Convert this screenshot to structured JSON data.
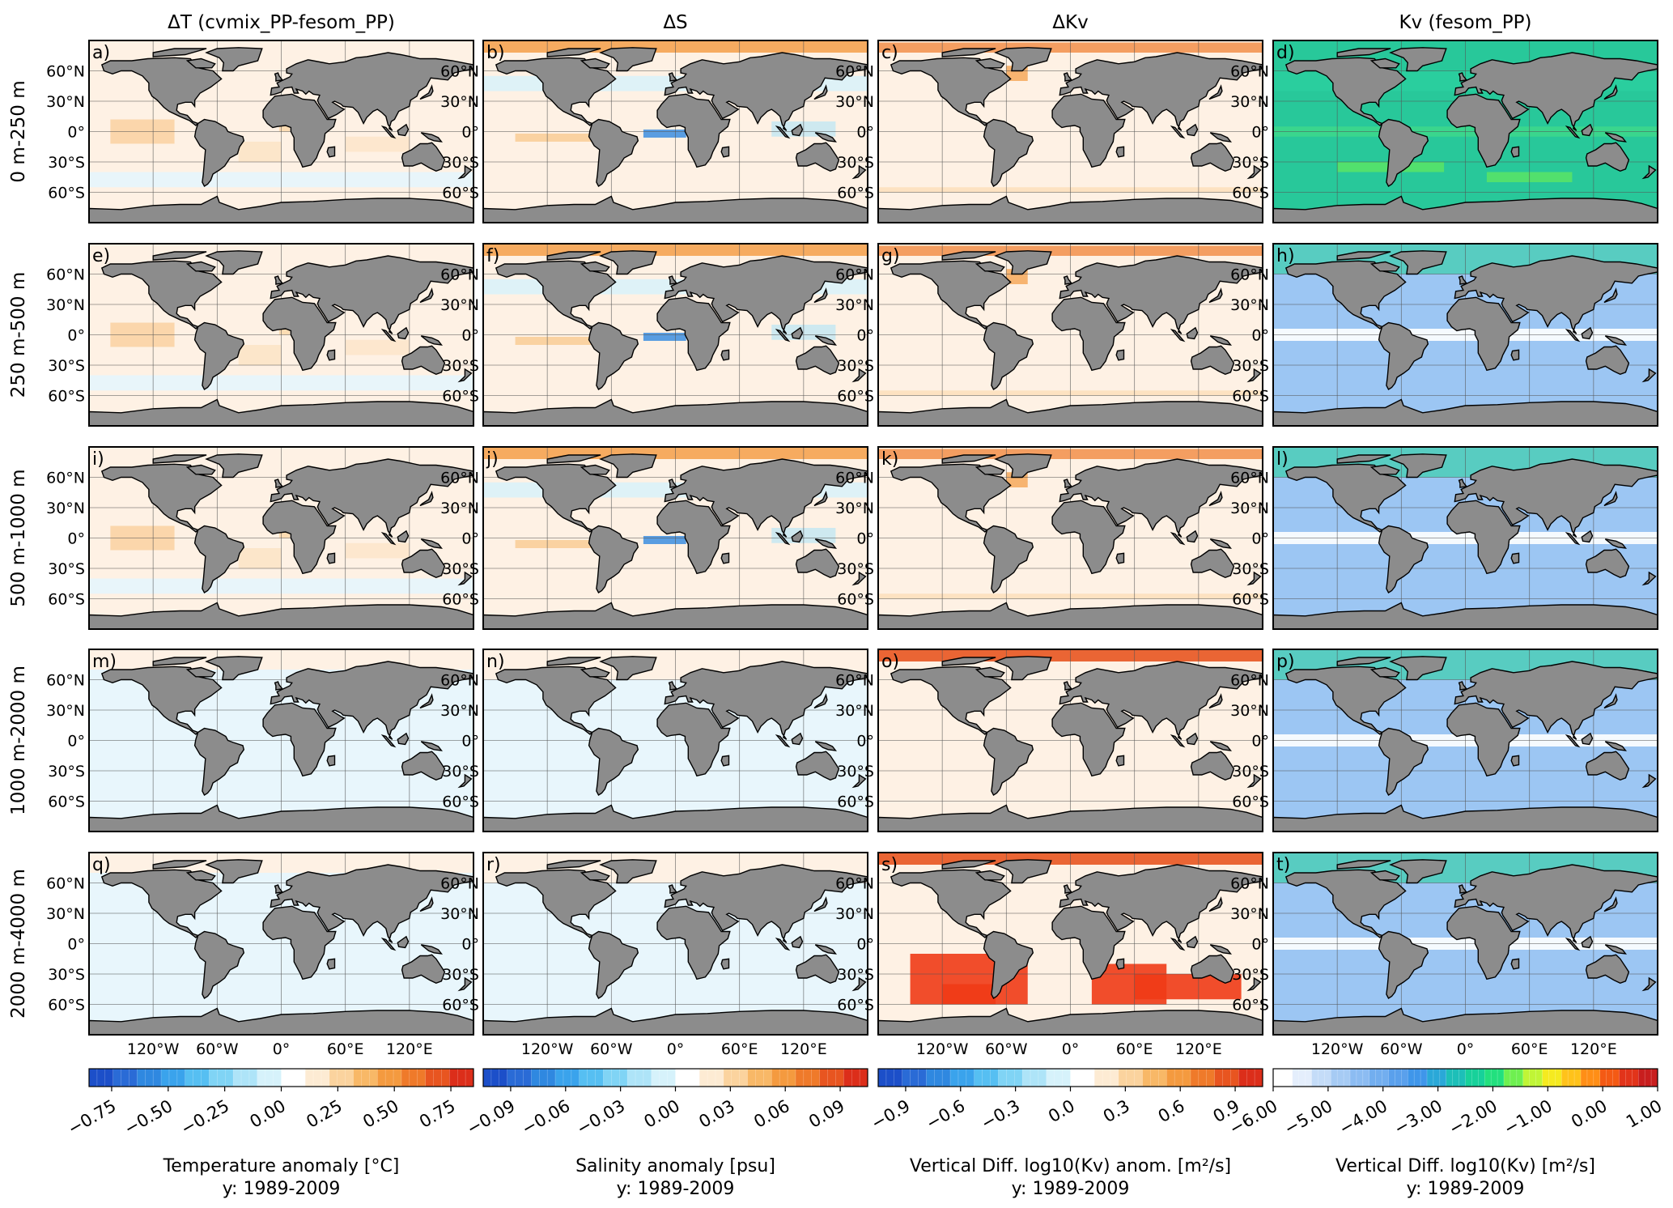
{
  "columns": [
    {
      "header": "ΔT (cvmix_PP-fesom_PP)",
      "theme": "temp",
      "labels": [
        "a)",
        "e)",
        "i)",
        "m)",
        "q)"
      ],
      "colorbar": {
        "colors": [
          "#1c4fc9",
          "#2a6bd6",
          "#2f88e0",
          "#3aa3ec",
          "#56bff2",
          "#80d4f5",
          "#aee4f8",
          "#d6f2fb",
          "#ffffff",
          "#fdebd3",
          "#fbd39e",
          "#f8b867",
          "#f49a3f",
          "#ef7a2a",
          "#e85520",
          "#dc2e1a"
        ],
        "ticks": [
          "−0.75",
          "−0.50",
          "−0.25",
          "0.00",
          "0.25",
          "0.50",
          "0.75"
        ],
        "tick_positions": [
          -0.75,
          -0.5,
          -0.25,
          0.0,
          0.25,
          0.5,
          0.75
        ],
        "range": [
          -0.85,
          0.85
        ],
        "label": "Temperature anomaly [°C]",
        "period": "y: 1989-2009"
      }
    },
    {
      "header": "ΔS",
      "theme": "sal",
      "labels": [
        "b)",
        "f)",
        "j)",
        "n)",
        "r)"
      ],
      "colorbar": {
        "colors": [
          "#1c4fc9",
          "#2a6bd6",
          "#2f88e0",
          "#3aa3ec",
          "#56bff2",
          "#80d4f5",
          "#aee4f8",
          "#d6f2fb",
          "#ffffff",
          "#fdebd3",
          "#fbd39e",
          "#f8b867",
          "#f49a3f",
          "#ef7a2a",
          "#e85520",
          "#dc2e1a"
        ],
        "ticks": [
          "−0.09",
          "−0.06",
          "−0.03",
          "0.00",
          "0.03",
          "0.06",
          "0.09"
        ],
        "tick_positions": [
          -0.09,
          -0.06,
          -0.03,
          0.0,
          0.03,
          0.06,
          0.09
        ],
        "range": [
          -0.105,
          0.105
        ],
        "label": "Salinity anomaly [psu]",
        "period": "y: 1989-2009"
      }
    },
    {
      "header": "ΔKv",
      "theme": "dkv",
      "labels": [
        "c)",
        "g)",
        "k)",
        "o)",
        "s)"
      ],
      "colorbar": {
        "colors": [
          "#1c4fc9",
          "#2a6bd6",
          "#2f88e0",
          "#3aa3ec",
          "#56bff2",
          "#80d4f5",
          "#aee4f8",
          "#d6f2fb",
          "#ffffff",
          "#fdebd3",
          "#fbd39e",
          "#f8b867",
          "#f49a3f",
          "#ef7a2a",
          "#e85520",
          "#dc2e1a"
        ],
        "ticks": [
          "−0.9",
          "−0.6",
          "−0.3",
          "0.0",
          "0.3",
          "0.6",
          "0.9"
        ],
        "tick_positions": [
          -0.9,
          -0.6,
          -0.3,
          0.0,
          0.3,
          0.6,
          0.9
        ],
        "range": [
          -1.05,
          1.05
        ],
        "label": "Vertical Diff. log10(Kv) anom. [m²/s]",
        "period": "y: 1989-2009"
      }
    },
    {
      "header": "Kv (fesom_PP)",
      "theme": "kv",
      "labels": [
        "d)",
        "h)",
        "l)",
        "p)",
        "t)"
      ],
      "colorbar": {
        "colors": [
          "#ffffff",
          "#e4eefc",
          "#c4dcf8",
          "#a6cbf4",
          "#8cbcf2",
          "#72aeef",
          "#5aa0ec",
          "#3f96ea",
          "#2aa8d8",
          "#1dbfb8",
          "#17d19a",
          "#22e07e",
          "#6ef050",
          "#c0f536",
          "#f5ea20",
          "#ffc21a",
          "#ff8e16",
          "#f45a14",
          "#e2341a",
          "#c81e1e"
        ],
        "ticks": [
          "−6.00",
          "−5.00",
          "−4.00",
          "−3.00",
          "−2.00",
          "−1.00",
          "0.00",
          "1.00"
        ],
        "tick_positions": [
          -6,
          -5,
          -4,
          -3,
          -2,
          -1,
          0,
          1
        ],
        "range": [
          -6,
          1
        ],
        "label": "Vertical Diff. log10(Kv) [m²/s]",
        "period": "y: 1989-2009"
      }
    }
  ],
  "rows": [
    "0 m-250 m",
    "250 m-500 m",
    "500 m-1000 m",
    "1000 m-2000 m",
    "2000 m-4000 m"
  ],
  "lat_ticks": [
    "60°N",
    "30°N",
    "0°",
    "30°S",
    "60°S"
  ],
  "lon_ticks": [
    "120°W",
    "60°W",
    "0°",
    "60°E",
    "120°E"
  ],
  "map_extent": {
    "lon": [
      -180,
      180
    ],
    "lat": [
      -90,
      90
    ]
  },
  "colors": {
    "land": "#8c8c8c",
    "ocean_background": "#fef1e4",
    "frame": "#000000"
  }
}
